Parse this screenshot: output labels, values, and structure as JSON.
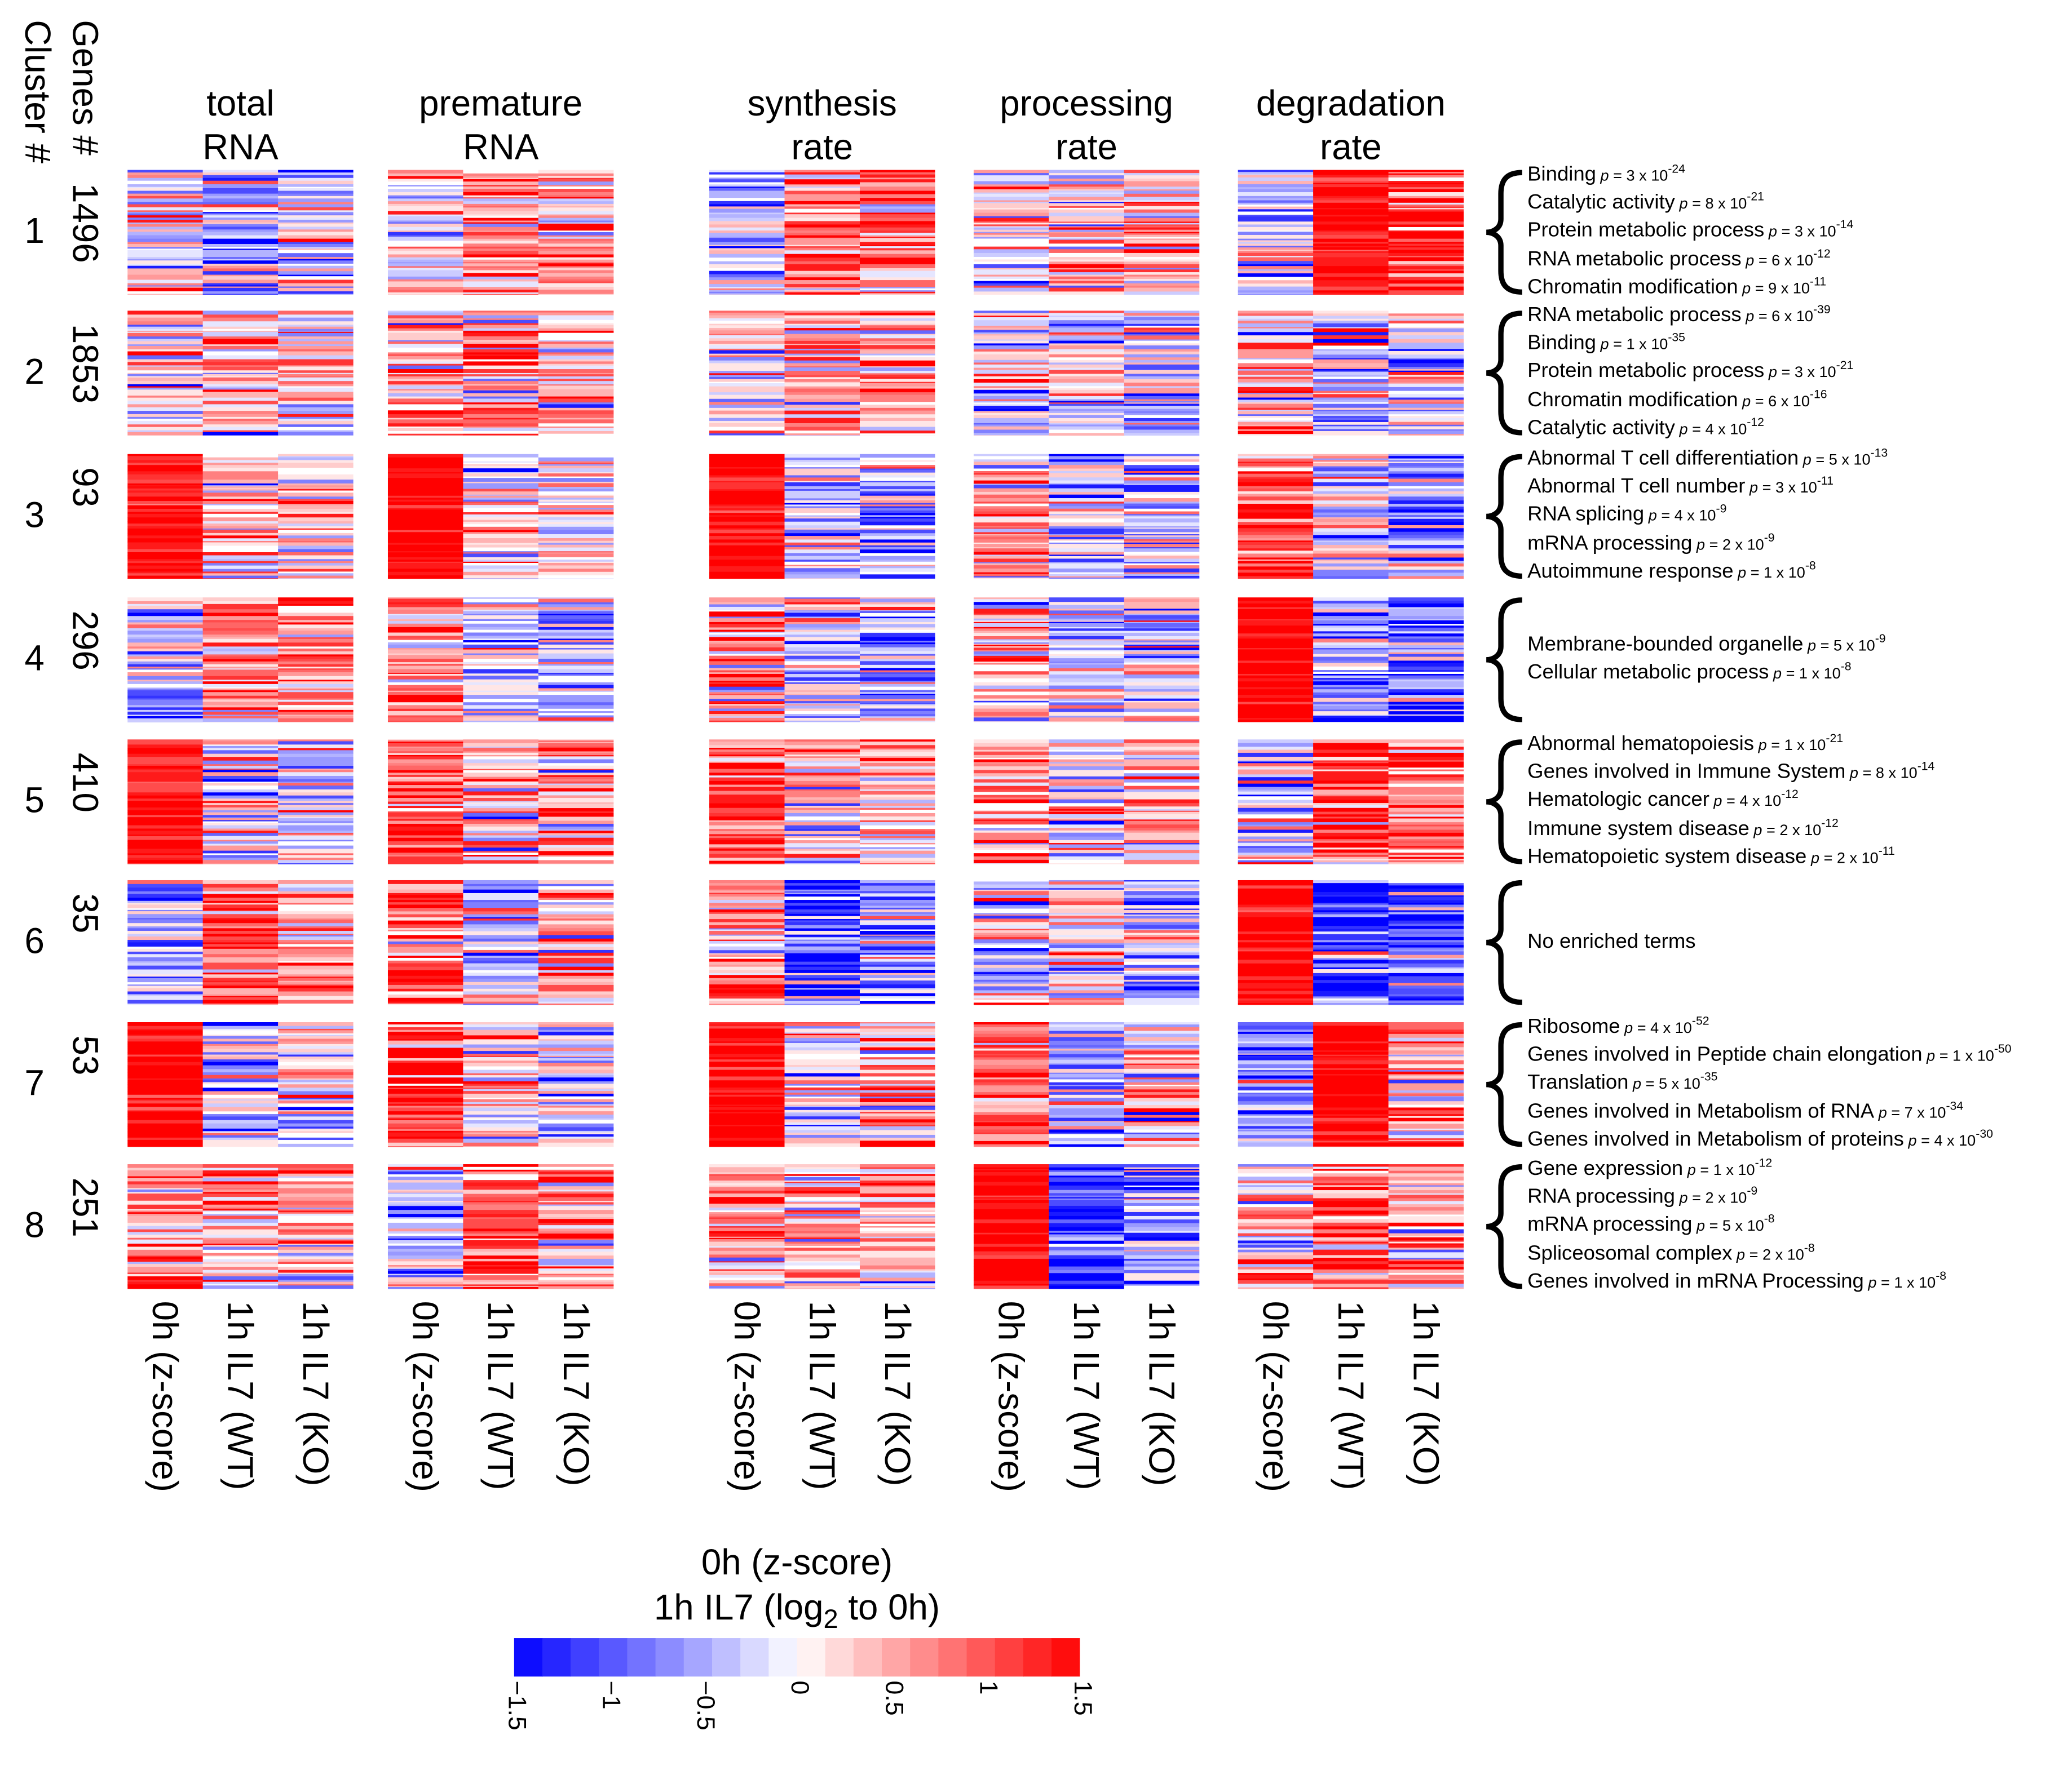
{
  "left_labels": {
    "cluster": "Cluster #",
    "genes": "Genes #"
  },
  "panels": [
    {
      "title1": "total",
      "title2": "RNA"
    },
    {
      "title1": "premature",
      "title2": "RNA"
    },
    {
      "title1": "synthesis",
      "title2": "rate"
    },
    {
      "title1": "processing",
      "title2": "rate"
    },
    {
      "title1": "degradation",
      "title2": "rate"
    }
  ],
  "column_labels": [
    "0h (z-score)",
    "1h IL7 (WT)",
    "1h IL7 (KO)"
  ],
  "clusters": [
    {
      "id": "1",
      "genes": "1496",
      "terms": [
        {
          "term": "Binding",
          "p": "p",
          "rest": " = 3 x 10",
          "exp": "-24"
        },
        {
          "term": "Catalytic activity",
          "p": "p",
          "rest": " = 8 x 10",
          "exp": "-21"
        },
        {
          "term": "Protein metabolic process",
          "p": "p",
          "rest": " = 3 x 10",
          "exp": "-14"
        },
        {
          "term": "RNA metabolic process",
          "p": "p",
          "rest": " = 6 x 10",
          "exp": "-12"
        },
        {
          "term": "Chromatin modification",
          "p": "p",
          "rest": " = 9 x 10",
          "exp": "-11"
        }
      ]
    },
    {
      "id": "2",
      "genes": "1853",
      "terms": [
        {
          "term": "RNA metabolic process",
          "p": "p",
          "rest": " = 6 x 10",
          "exp": "-39"
        },
        {
          "term": "Binding",
          "p": "p",
          "rest": " = 1 x 10",
          "exp": "-35"
        },
        {
          "term": "Protein metabolic process",
          "p": "p",
          "rest": " = 3 x 10",
          "exp": "-21"
        },
        {
          "term": "Chromatin modification",
          "p": "p",
          "rest": " = 6 x 10",
          "exp": "-16"
        },
        {
          "term": "Catalytic activity",
          "p": "p",
          "rest": " = 4 x 10",
          "exp": "-12"
        }
      ]
    },
    {
      "id": "3",
      "genes": "93",
      "terms": [
        {
          "term": "Abnormal T cell differentiation",
          "p": "p",
          "rest": " = 5 x 10",
          "exp": "-13"
        },
        {
          "term": "Abnormal T cell number",
          "p": "p",
          "rest": " = 3 x 10",
          "exp": "-11"
        },
        {
          "term": "RNA splicing",
          "p": "p",
          "rest": " = 4 x 10",
          "exp": "-9"
        },
        {
          "term": "mRNA processing",
          "p": "p",
          "rest": " = 2 x 10",
          "exp": "-9"
        },
        {
          "term": "Autoimmune response",
          "p": "p",
          "rest": " = 1 x 10",
          "exp": "-8"
        }
      ]
    },
    {
      "id": "4",
      "genes": "296",
      "terms": [
        {
          "term": "Membrane-bounded organelle",
          "p": "p",
          "rest": " = 5 x 10",
          "exp": "-9"
        },
        {
          "term": "Cellular metabolic process",
          "p": "p",
          "rest": " = 1 x 10",
          "exp": "-8"
        }
      ]
    },
    {
      "id": "5",
      "genes": "410",
      "terms": [
        {
          "term": "Abnormal hematopoiesis",
          "p": "p",
          "rest": " = 1 x 10",
          "exp": "-21"
        },
        {
          "term": "Genes involved in Immune System",
          "p": "p",
          "rest": " = 8 x 10",
          "exp": "-14"
        },
        {
          "term": "Hematologic cancer",
          "p": "p",
          "rest": " = 4 x 10",
          "exp": "-12"
        },
        {
          "term": "Immune system disease",
          "p": "p",
          "rest": " = 2 x 10",
          "exp": "-12"
        },
        {
          "term": "Hematopoietic system disease",
          "p": "p",
          "rest": " = 2 x 10",
          "exp": "-11"
        }
      ]
    },
    {
      "id": "6",
      "genes": "35",
      "terms": [
        {
          "term": "No enriched terms"
        }
      ]
    },
    {
      "id": "7",
      "genes": "53",
      "terms": [
        {
          "term": "Ribosome",
          "p": "p",
          "rest": " = 4 x 10",
          "exp": "-52"
        },
        {
          "term": "Genes involved in Peptide chain elongation",
          "p": "p",
          "rest": " = 1 x 10",
          "exp": "-50"
        },
        {
          "term": "Translation",
          "p": "p",
          "rest": " = 5 x 10",
          "exp": "-35"
        },
        {
          "term": "Genes involved in Metabolism of RNA",
          "p": "p",
          "rest": " = 7 x 10",
          "exp": "-34"
        },
        {
          "term": "Genes involved in Metabolism of proteins",
          "p": "p",
          "rest": " = 4 x 10",
          "exp": "-30"
        }
      ]
    },
    {
      "id": "8",
      "genes": "251",
      "terms": [
        {
          "term": "Gene expression",
          "p": "p",
          "rest": " = 1 x 10",
          "exp": "-12"
        },
        {
          "term": "RNA processing",
          "p": "p",
          "rest": " = 2 x 10",
          "exp": "-9"
        },
        {
          "term": "mRNA processing",
          "p": "p",
          "rest": " = 5 x 10",
          "exp": "-8"
        },
        {
          "term": "Spliceosomal complex",
          "p": "p",
          "rest": " = 2 x 10",
          "exp": "-8"
        },
        {
          "term": "Genes involved in mRNA Processing",
          "p": "p",
          "rest": " = 1 x 10",
          "exp": "-8"
        }
      ]
    }
  ],
  "colorbar": {
    "title1": "0h (z-score)",
    "title2_pre": "1h IL7 (log",
    "title2_sub": "2",
    "title2_post": " to 0h)",
    "ticks": [
      "−1.5",
      "−1",
      "−0.5",
      "0",
      "0.5",
      "1",
      "1.5"
    ],
    "range": [
      -1.5,
      1.5
    ],
    "steps": 20,
    "low_color": "#0000ff",
    "mid_color": "#ffffff",
    "high_color": "#ff0000"
  },
  "chart_data": {
    "type": "heatmap",
    "title": "",
    "rows": [
      "Cluster 1",
      "Cluster 2",
      "Cluster 3",
      "Cluster 4",
      "Cluster 5",
      "Cluster 6",
      "Cluster 7",
      "Cluster 8"
    ],
    "panels": [
      "total RNA",
      "premature RNA",
      "synthesis rate",
      "processing rate",
      "degradation rate"
    ],
    "columns": [
      "0h (z-score)",
      "1h IL7 (WT)",
      "1h IL7 (KO)"
    ],
    "value_range": [
      -1.5,
      1.5
    ],
    "approx_cluster_means": [
      [
        [
          0.1,
          -0.5,
          -0.3
        ],
        [
          0.0,
          0.6,
          0.6
        ],
        [
          -0.4,
          0.8,
          0.8
        ],
        [
          0.0,
          0.3,
          0.5
        ],
        [
          -0.3,
          1.4,
          1.2
        ]
      ],
      [
        [
          0.0,
          0.4,
          0.3
        ],
        [
          0.2,
          0.6,
          0.5
        ],
        [
          0.0,
          0.4,
          0.4
        ],
        [
          0.0,
          0.0,
          -0.1
        ],
        [
          0.3,
          -0.3,
          -0.2
        ]
      ],
      [
        [
          1.4,
          0.3,
          0.3
        ],
        [
          1.5,
          0.2,
          0.1
        ],
        [
          1.5,
          -0.4,
          -0.3
        ],
        [
          0.5,
          -0.3,
          -0.3
        ],
        [
          1.0,
          -0.3,
          -0.6
        ]
      ],
      [
        [
          -0.3,
          0.6,
          0.7
        ],
        [
          0.6,
          -0.2,
          -0.4
        ],
        [
          0.6,
          -0.4,
          -0.4
        ],
        [
          0.2,
          -0.3,
          -0.2
        ],
        [
          1.5,
          -0.7,
          -0.7
        ]
      ],
      [
        [
          1.4,
          -0.2,
          -0.1
        ],
        [
          1.1,
          0.4,
          0.6
        ],
        [
          1.0,
          0.2,
          0.5
        ],
        [
          0.6,
          0.2,
          0.2
        ],
        [
          -0.2,
          1.0,
          0.8
        ]
      ],
      [
        [
          -0.5,
          0.9,
          0.6
        ],
        [
          0.8,
          -0.3,
          0.3
        ],
        [
          0.6,
          -0.9,
          -0.6
        ],
        [
          -0.2,
          0.1,
          -0.2
        ],
        [
          1.5,
          -1.2,
          -1.0
        ]
      ],
      [
        [
          1.5,
          -0.2,
          -0.1
        ],
        [
          1.2,
          0.3,
          -0.2
        ],
        [
          1.5,
          -0.1,
          0.1
        ],
        [
          1.0,
          -0.6,
          0.2
        ],
        [
          -0.6,
          1.5,
          0.8
        ]
      ],
      [
        [
          0.5,
          0.4,
          0.4
        ],
        [
          -0.4,
          1.0,
          0.7
        ],
        [
          0.6,
          0.5,
          0.4
        ],
        [
          1.5,
          -1.2,
          -0.6
        ],
        [
          0.4,
          0.9,
          0.6
        ]
      ]
    ]
  }
}
